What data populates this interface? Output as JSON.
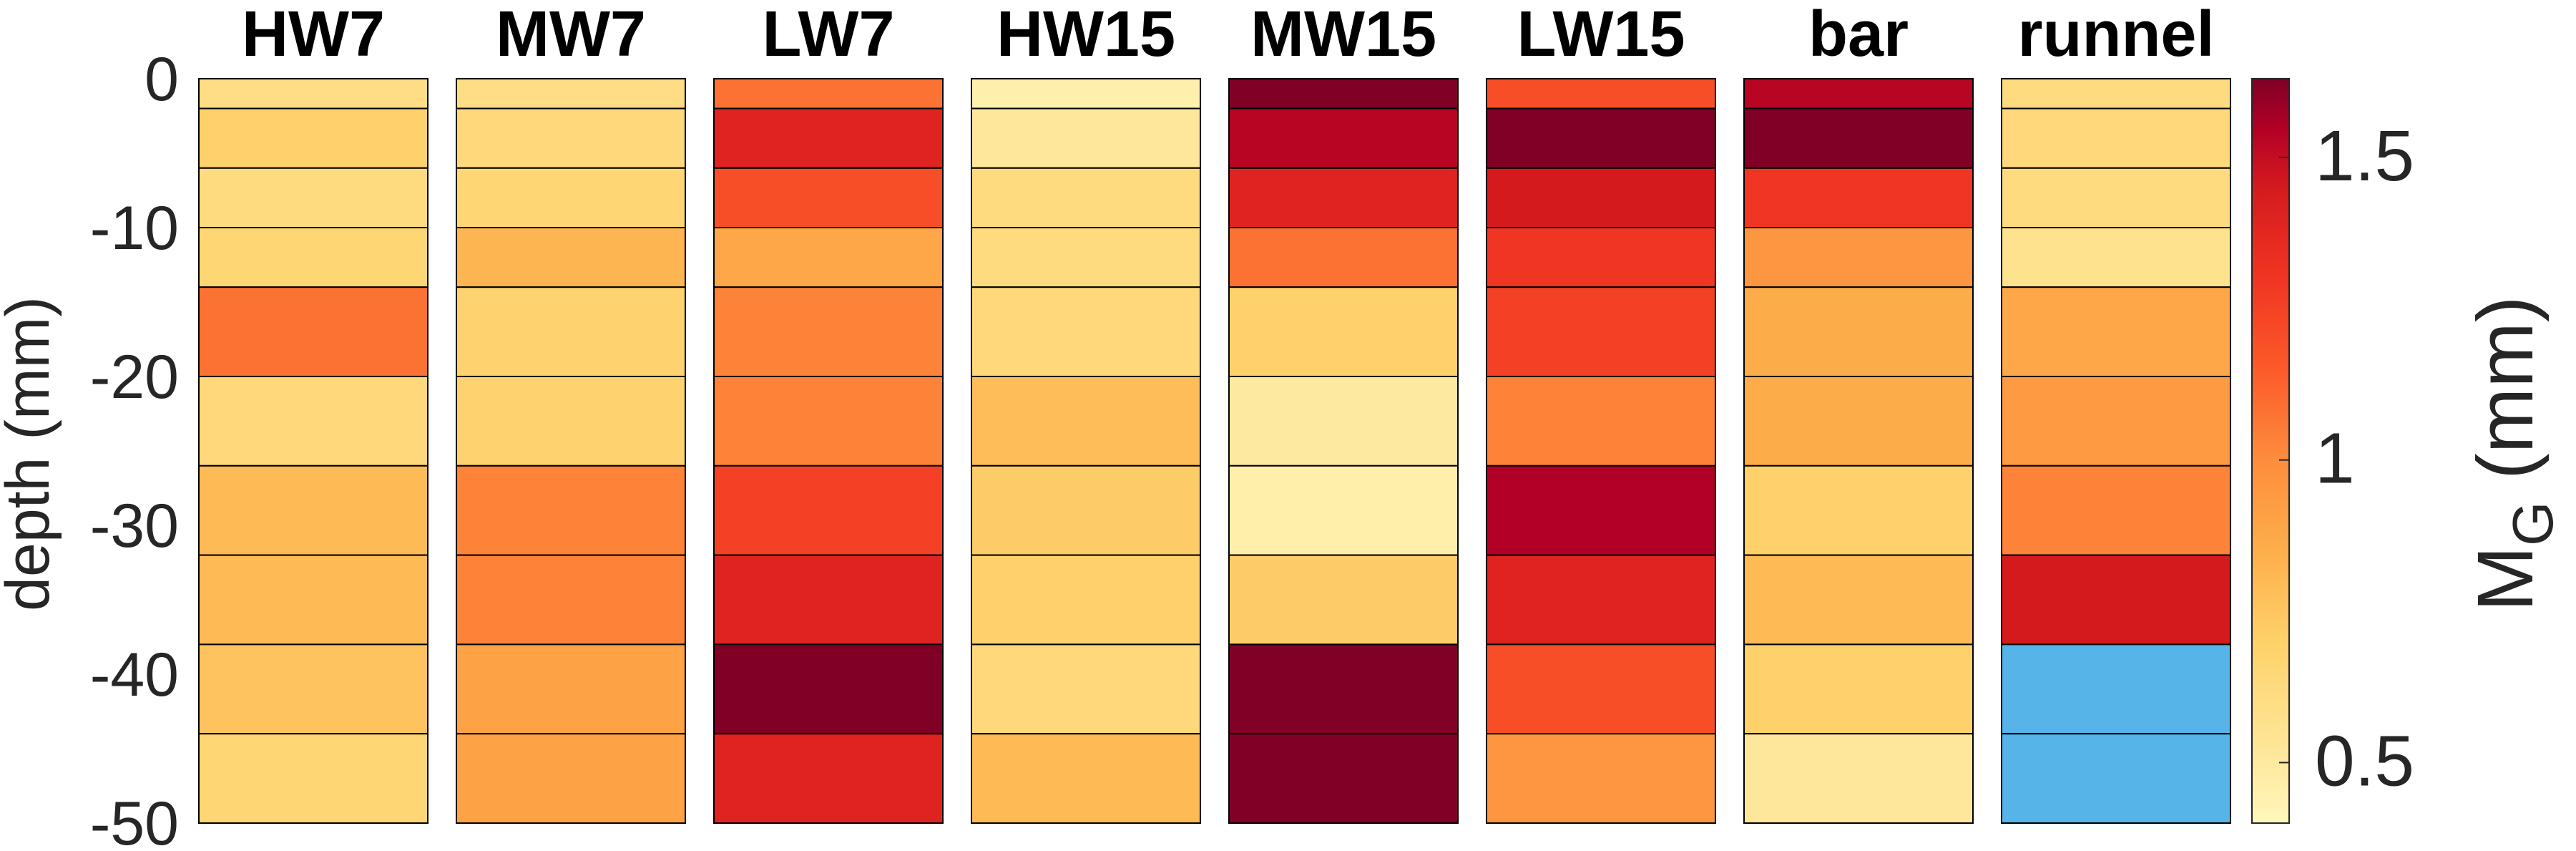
{
  "chart_data": {
    "type": "heatmap",
    "ylabel": "depth (mm)",
    "ylim": [
      -50,
      0
    ],
    "yticks": [
      0,
      -10,
      -20,
      -30,
      -40,
      -50
    ],
    "columns": [
      "HW7",
      "MW7",
      "LW7",
      "HW15",
      "MW15",
      "LW15",
      "bar",
      "runnel"
    ],
    "layers": [
      {
        "top": 0,
        "bottom": -2
      },
      {
        "top": -2,
        "bottom": -6
      },
      {
        "top": -6,
        "bottom": -10
      },
      {
        "top": -10,
        "bottom": -14
      },
      {
        "top": -14,
        "bottom": -20
      },
      {
        "top": -20,
        "bottom": -26
      },
      {
        "top": -26,
        "bottom": -32
      },
      {
        "top": -32,
        "bottom": -38
      },
      {
        "top": -38,
        "bottom": -44
      },
      {
        "top": -44,
        "bottom": -50
      }
    ],
    "values": {
      "HW7": [
        0.6,
        0.7,
        0.62,
        0.66,
        1.08,
        0.64,
        0.8,
        0.8,
        0.76,
        0.66
      ],
      "MW7": [
        0.6,
        0.64,
        0.66,
        0.82,
        0.68,
        0.68,
        1.03,
        1.03,
        0.9,
        0.9
      ],
      "LW7": [
        1.08,
        1.4,
        1.2,
        0.88,
        1.03,
        1.03,
        1.25,
        1.4,
        1.63,
        1.4
      ],
      "HW15": [
        0.45,
        0.52,
        0.62,
        0.62,
        0.64,
        0.78,
        0.72,
        0.7,
        0.64,
        0.8
      ],
      "MW15": [
        1.63,
        1.53,
        1.4,
        1.08,
        0.7,
        0.5,
        0.46,
        0.72,
        1.63,
        1.63
      ],
      "LW15": [
        1.2,
        1.63,
        1.45,
        1.3,
        1.25,
        1.03,
        1.55,
        1.4,
        1.2,
        0.96
      ],
      "bar": [
        1.53,
        1.63,
        1.3,
        0.96,
        0.86,
        0.86,
        0.7,
        0.8,
        0.7,
        0.52
      ],
      "runnel": [
        0.62,
        0.64,
        0.62,
        0.56,
        0.88,
        0.94,
        1.03,
        1.45,
        null,
        null
      ]
    },
    "missing_color": "#56b4e9",
    "colorbar": {
      "label": "M",
      "label_subscript": "G",
      "label_unit": " (mm)",
      "range": [
        0.4,
        1.63
      ],
      "ticks": [
        0.5,
        1,
        1.5
      ],
      "tick_labels": [
        "0.5",
        "1",
        "1.5"
      ],
      "stops": [
        {
          "v": 0.4,
          "c": "#fff7bc"
        },
        {
          "v": 0.55,
          "c": "#fee391"
        },
        {
          "v": 0.7,
          "c": "#fed16a"
        },
        {
          "v": 0.85,
          "c": "#fdae4b"
        },
        {
          "v": 1.0,
          "c": "#fd8d3c"
        },
        {
          "v": 1.15,
          "c": "#fc5a2a"
        },
        {
          "v": 1.3,
          "c": "#f03523"
        },
        {
          "v": 1.45,
          "c": "#d51a1e"
        },
        {
          "v": 1.55,
          "c": "#b10026"
        },
        {
          "v": 1.63,
          "c": "#800026"
        }
      ]
    }
  }
}
